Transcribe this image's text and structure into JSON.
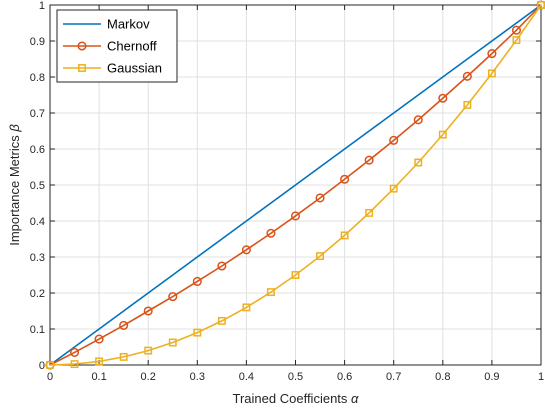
{
  "chart_data": {
    "type": "line",
    "xlabel": "Trained Coefficients",
    "xlabel_symbol": "α",
    "ylabel": "Importance Metrics",
    "ylabel_symbol": "β",
    "xlim": [
      0,
      1
    ],
    "ylim": [
      0,
      1
    ],
    "xticks": [
      "0",
      "0.1",
      "0.2",
      "0.3",
      "0.4",
      "0.5",
      "0.6",
      "0.7",
      "0.8",
      "0.9",
      "1"
    ],
    "yticks": [
      "0",
      "0.1",
      "0.2",
      "0.3",
      "0.4",
      "0.5",
      "0.6",
      "0.7",
      "0.8",
      "0.9",
      "1"
    ],
    "grid": true,
    "legend_position": "top-left",
    "x": [
      0,
      0.05,
      0.1,
      0.15,
      0.2,
      0.25,
      0.3,
      0.35,
      0.4,
      0.45,
      0.5,
      0.55,
      0.6,
      0.65,
      0.7,
      0.75,
      0.8,
      0.85,
      0.9,
      0.95,
      1
    ],
    "series": [
      {
        "name": "Markov",
        "color": "#0072BD",
        "marker": "none",
        "values": [
          0,
          0.05,
          0.1,
          0.15,
          0.2,
          0.25,
          0.3,
          0.35,
          0.4,
          0.45,
          0.5,
          0.55,
          0.6,
          0.65,
          0.7,
          0.75,
          0.8,
          0.85,
          0.9,
          0.95,
          1
        ]
      },
      {
        "name": "Chernoff",
        "color": "#D95319",
        "marker": "circle",
        "values": [
          0,
          0.035,
          0.072,
          0.11,
          0.15,
          0.19,
          0.232,
          0.275,
          0.32,
          0.366,
          0.414,
          0.464,
          0.516,
          0.569,
          0.624,
          0.681,
          0.741,
          0.802,
          0.865,
          0.93,
          1
        ]
      },
      {
        "name": "Gaussian",
        "color": "#EDB120",
        "marker": "square",
        "values": [
          0,
          0.0025,
          0.01,
          0.0225,
          0.04,
          0.0625,
          0.09,
          0.1225,
          0.16,
          0.2025,
          0.25,
          0.3025,
          0.36,
          0.4225,
          0.49,
          0.5625,
          0.64,
          0.7225,
          0.81,
          0.9025,
          1
        ]
      }
    ]
  }
}
